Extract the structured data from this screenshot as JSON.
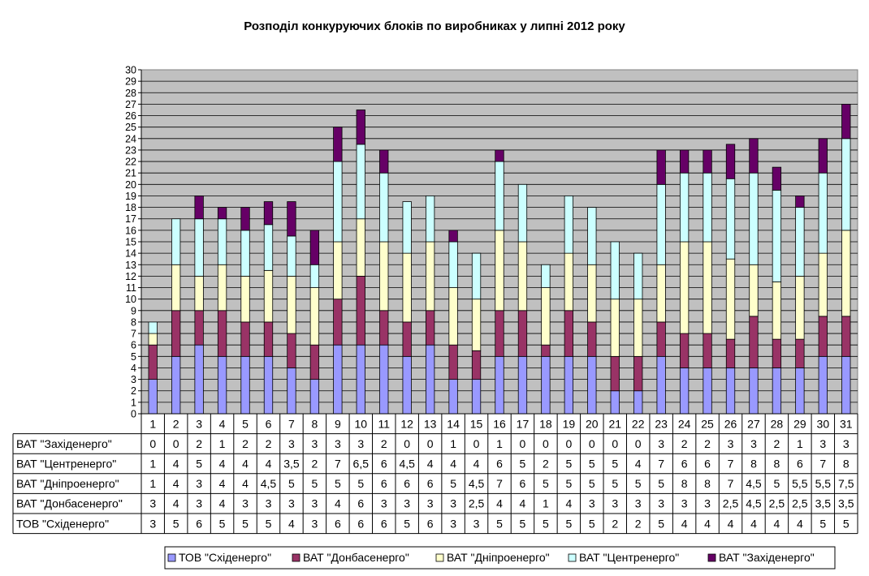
{
  "chart_data": {
    "type": "bar",
    "stacked": true,
    "title": "Розподіл конкуруючих блоків по виробниках у липні 2012 року",
    "categories": [
      "1",
      "2",
      "3",
      "4",
      "5",
      "6",
      "7",
      "8",
      "9",
      "10",
      "11",
      "12",
      "13",
      "14",
      "15",
      "16",
      "17",
      "18",
      "19",
      "20",
      "21",
      "22",
      "23",
      "24",
      "25",
      "26",
      "27",
      "28",
      "29",
      "30",
      "31"
    ],
    "ylim": [
      0,
      30
    ],
    "yticks": [
      "0",
      "1",
      "2",
      "3",
      "4",
      "5",
      "6",
      "7",
      "8",
      "9",
      "10",
      "11",
      "12",
      "13",
      "14",
      "15",
      "16",
      "17",
      "18",
      "19",
      "20",
      "21",
      "22",
      "23",
      "24",
      "25",
      "26",
      "27",
      "28",
      "29",
      "30"
    ],
    "grid": true,
    "legend_position": "bottom",
    "series": [
      {
        "name": "ТОВ \"Східенерго\"",
        "color": "#9999ff",
        "values": [
          3,
          5,
          6,
          5,
          5,
          5,
          4,
          3,
          6,
          6,
          6,
          5,
          6,
          3,
          3,
          5,
          5,
          5,
          5,
          5,
          2,
          2,
          5,
          4,
          4,
          4,
          4,
          4,
          4,
          5,
          5
        ],
        "labels": [
          "3",
          "5",
          "6",
          "5",
          "5",
          "5",
          "4",
          "3",
          "6",
          "6",
          "6",
          "5",
          "6",
          "3",
          "3",
          "5",
          "5",
          "5",
          "5",
          "5",
          "2",
          "2",
          "5",
          "4",
          "4",
          "4",
          "4",
          "4",
          "4",
          "5",
          "5"
        ]
      },
      {
        "name": "ВАТ \"Донбасенерго\"",
        "color": "#993366",
        "values": [
          3,
          4,
          3,
          4,
          3,
          3,
          3,
          3,
          4,
          6,
          3,
          3,
          3,
          3,
          2.5,
          4,
          4,
          1,
          4,
          3,
          3,
          3,
          3,
          3,
          3,
          2.5,
          4.5,
          2.5,
          2.5,
          3.5,
          3.5
        ],
        "labels": [
          "3",
          "4",
          "3",
          "4",
          "3",
          "3",
          "3",
          "3",
          "4",
          "6",
          "3",
          "3",
          "3",
          "3",
          "2,5",
          "4",
          "4",
          "1",
          "4",
          "3",
          "3",
          "3",
          "3",
          "3",
          "3",
          "2,5",
          "4,5",
          "2,5",
          "2,5",
          "3,5",
          "3,5"
        ]
      },
      {
        "name": "ВАТ \"Дніпроенерго\"",
        "color": "#ffffcc",
        "values": [
          1,
          4,
          3,
          4,
          4,
          4.5,
          5,
          5,
          5,
          5,
          6,
          6,
          6,
          5,
          4.5,
          7,
          6,
          5,
          5,
          5,
          5,
          5,
          5,
          8,
          8,
          7,
          4.5,
          5,
          5.5,
          5.5,
          7.5
        ],
        "labels": [
          "1",
          "4",
          "3",
          "4",
          "4",
          "4,5",
          "5",
          "5",
          "5",
          "5",
          "6",
          "6",
          "6",
          "5",
          "4,5",
          "7",
          "6",
          "5",
          "5",
          "5",
          "5",
          "5",
          "5",
          "8",
          "8",
          "7",
          "4,5",
          "5",
          "5,5",
          "5,5",
          "7,5"
        ]
      },
      {
        "name": "ВАТ \"Центренерго\"",
        "color": "#ccffff",
        "values": [
          1,
          4,
          5,
          4,
          4,
          4,
          3.5,
          2,
          7,
          6.5,
          6,
          4.5,
          4,
          4,
          4,
          6,
          5,
          2,
          5,
          5,
          5,
          4,
          7,
          6,
          6,
          7,
          8,
          8,
          6,
          7,
          8
        ],
        "labels": [
          "1",
          "4",
          "5",
          "4",
          "4",
          "4",
          "3,5",
          "2",
          "7",
          "6,5",
          "6",
          "4,5",
          "4",
          "4",
          "4",
          "6",
          "5",
          "2",
          "5",
          "5",
          "5",
          "4",
          "7",
          "6",
          "6",
          "7",
          "8",
          "8",
          "6",
          "7",
          "8"
        ]
      },
      {
        "name": "ВАТ \"Західенерго\"",
        "color": "#660066",
        "values": [
          0,
          0,
          2,
          1,
          2,
          2,
          3,
          3,
          3,
          3,
          2,
          0,
          0,
          1,
          0,
          1,
          0,
          0,
          0,
          0,
          0,
          0,
          3,
          2,
          2,
          3,
          3,
          2,
          1,
          3,
          3
        ],
        "labels": [
          "0",
          "0",
          "2",
          "1",
          "2",
          "2",
          "3",
          "3",
          "3",
          "3",
          "2",
          "0",
          "0",
          "1",
          "0",
          "1",
          "0",
          "0",
          "0",
          "0",
          "0",
          "0",
          "3",
          "2",
          "2",
          "3",
          "3",
          "2",
          "1",
          "3",
          "3"
        ]
      }
    ]
  }
}
